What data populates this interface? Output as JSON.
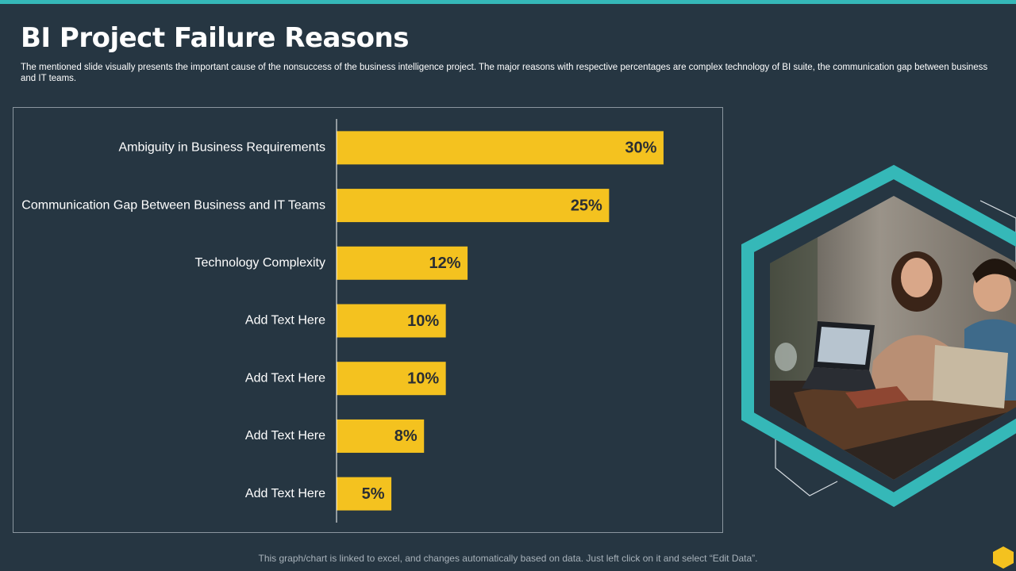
{
  "slide": {
    "title": "BI Project Failure Reasons",
    "subtitle": "The mentioned slide visually presents the important cause of the nonsuccess of the business intelligence project. The major reasons with respective percentages are complex technology of BI suite, the communication gap between business and IT teams.",
    "footer": "This graph/chart is linked to excel, and changes automatically based on data. Just left click on it and select “Edit Data”."
  },
  "colors": {
    "background": "#263642",
    "accent": "#35b8b8",
    "bar": "#f4c21f",
    "bar_label": "#2a2e33",
    "corner_hex": "#f4c21f"
  },
  "photo": {
    "icon": "people-at-laptop-photo"
  },
  "chart_data": {
    "type": "bar",
    "orientation": "horizontal",
    "categories": [
      "Ambiguity in Business Requirements",
      "Communication Gap Between Business and IT Teams",
      "Technology Complexity",
      "Add Text Here",
      "Add Text Here",
      "Add Text Here",
      "Add Text Here"
    ],
    "values": [
      30,
      25,
      12,
      10,
      10,
      8,
      5
    ],
    "value_labels": [
      "30%",
      "25%",
      "12%",
      "10%",
      "10%",
      "8%",
      "5%"
    ],
    "xlim": [
      0,
      35
    ],
    "grid": false,
    "legend": "none"
  }
}
